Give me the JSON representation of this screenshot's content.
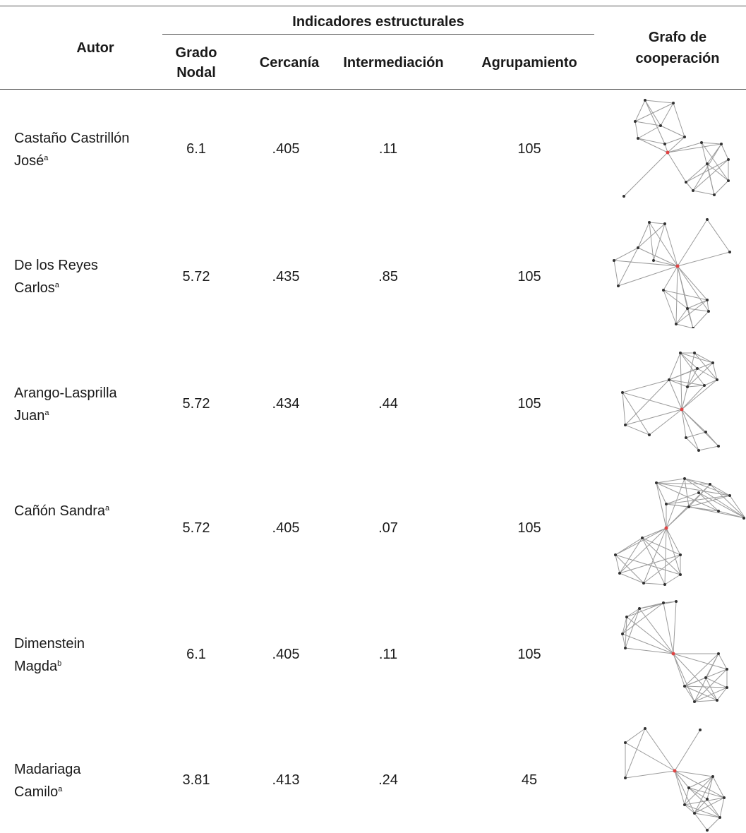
{
  "header": {
    "author": "Autor",
    "group": "Indicadores estructurales",
    "grado_line1": "Grado",
    "grado_line2": "Nodal",
    "cercania": "Cercanía",
    "intermediacion": "Intermediación",
    "agrupamiento": "Agrupamiento",
    "grafo_line1": "Grafo de",
    "grafo_line2": "cooperación"
  },
  "rows": [
    {
      "author_line1": "Castaño Castrillón",
      "author_line2": "José",
      "sup": "a",
      "grado": "6.1",
      "cercania": ".405",
      "intermediacion": ".11",
      "agrupamiento": "105"
    },
    {
      "author_line1": "De los Reyes",
      "author_line2": "Carlos",
      "sup": "a",
      "grado": "5.72",
      "cercania": ".435",
      "intermediacion": ".85",
      "agrupamiento": "105"
    },
    {
      "author_line1": "Arango-Lasprilla",
      "author_line2": "Juan",
      "sup": "a",
      "grado": "5.72",
      "cercania": ".434",
      "intermediacion": ".44",
      "agrupamiento": "105"
    },
    {
      "author_line1": "",
      "author_line2": "Cañón Sandra",
      "sup": "a",
      "grado": "5.72",
      "cercania": ".405",
      "intermediacion": ".07",
      "agrupamiento": "105"
    },
    {
      "author_line1": "Dimenstein",
      "author_line2": "Magda",
      "sup": "b",
      "grado": "6.1",
      "cercania": ".405",
      "intermediacion": ".11",
      "agrupamiento": "105"
    },
    {
      "author_line1": "Madariaga",
      "author_line2": "Camilo",
      "sup": "a",
      "grado": "3.81",
      "cercania": ".413",
      "intermediacion": ".24",
      "agrupamiento": "45"
    }
  ]
}
